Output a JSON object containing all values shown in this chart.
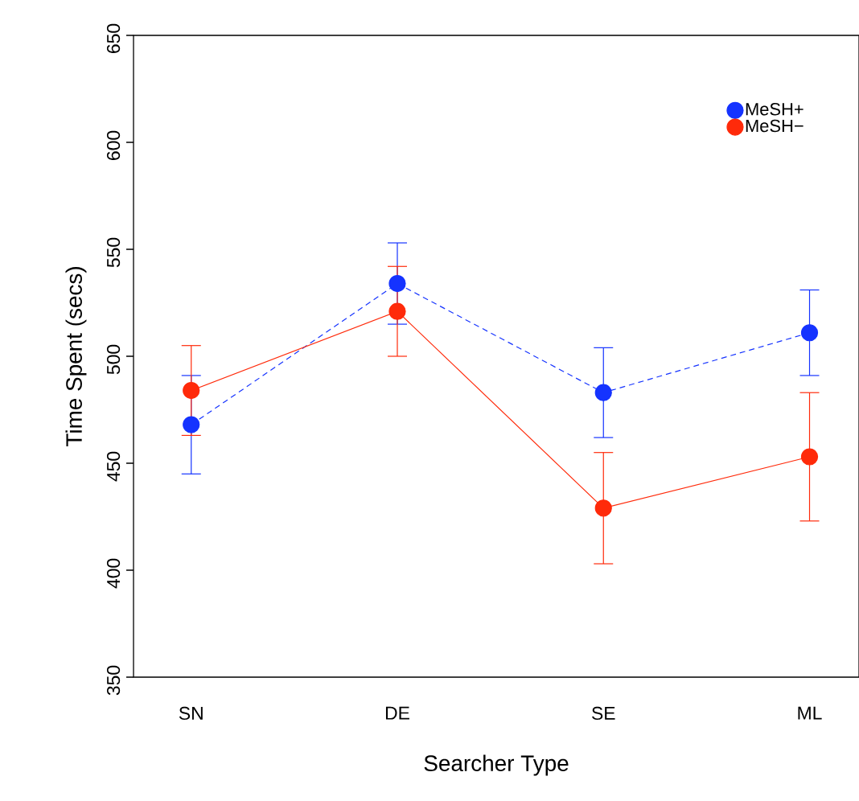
{
  "chart_data": {
    "type": "line",
    "xlabel": "Searcher Type",
    "ylabel": "Time Spent (secs)",
    "categories": [
      "SN",
      "DE",
      "SE",
      "ML"
    ],
    "series": [
      {
        "name": "MeSH+",
        "color": "#1533ff",
        "line_style": "dashed",
        "values": [
          468,
          534,
          483,
          511
        ],
        "errors": [
          23,
          19,
          21,
          20
        ]
      },
      {
        "name": "MeSH−",
        "color": "#ff2a0a",
        "line_style": "solid",
        "values": [
          484,
          521,
          429,
          453
        ],
        "errors": [
          21,
          21,
          26,
          30
        ]
      }
    ],
    "ylim": [
      350,
      650
    ],
    "yticks": [
      350,
      400,
      450,
      500,
      550,
      600,
      650
    ],
    "marker": "circle",
    "legend": "top right",
    "grid": false
  }
}
